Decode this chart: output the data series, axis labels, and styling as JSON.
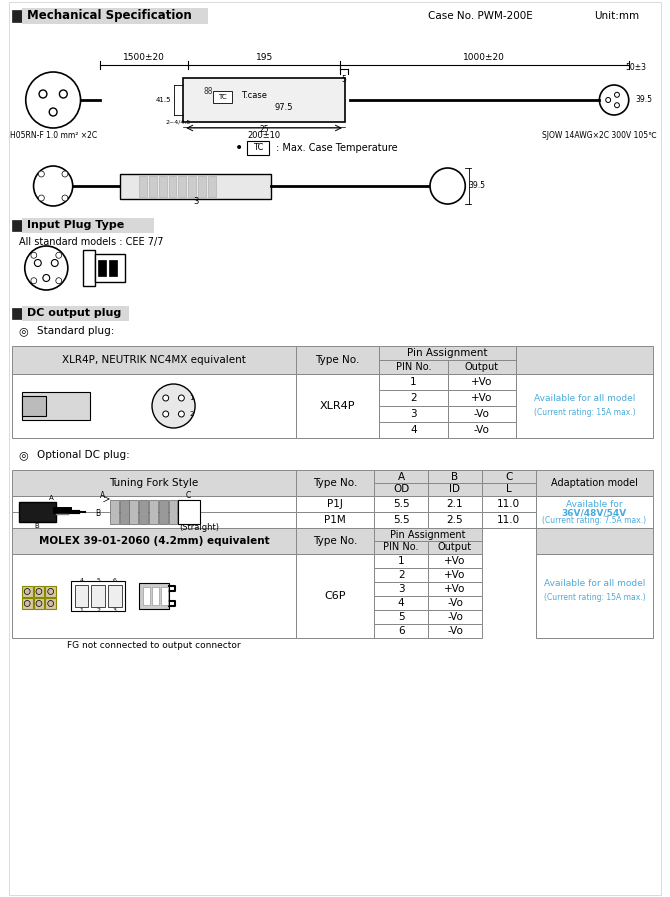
{
  "title_section": "Mechanical Specification",
  "case_no": "Case No. PWM-200E",
  "unit": "Unit:mm",
  "bg_color": "#ffffff",
  "header_bg": "#d0d0d0",
  "table_border": "#888888",
  "cyan_text": "#4AABDB",
  "section2_title": "Input Plug Type",
  "section2_sub": "All standard models : CEE 7/7",
  "section3_title": "DC output plug",
  "standard_plug_label": "Standard plug:",
  "optional_plug_label": "Optional DC plug:",
  "xlr_table": {
    "col1_header": "XLR4P, NEUTRIK NC4MX equivalent",
    "col2_header": "Type No.",
    "col3_header": "Pin Assignment",
    "col3a": "PIN No.",
    "col3b": "Output",
    "type_no": "XLR4P",
    "pins": [
      {
        "pin": "1",
        "output": "+Vo"
      },
      {
        "pin": "2",
        "output": "+Vo"
      },
      {
        "pin": "3",
        "output": "-Vo"
      },
      {
        "pin": "4",
        "output": "-Vo"
      }
    ],
    "note_line1": "Available for all model",
    "note_line2": "(Current rating: 15A max.)"
  },
  "optional_table": {
    "col1_header": "Tuning Fork Style",
    "col2_header": "Type No.",
    "col_adapt": "Adaptation model",
    "rows_fork": [
      {
        "type": "P1J",
        "A": "5.5",
        "B": "2.1",
        "C": "11.0"
      },
      {
        "type": "P1M",
        "A": "5.5",
        "B": "2.5",
        "C": "11.0"
      }
    ],
    "fork_note_line1": "Available for",
    "fork_note_line2": "36V/48V/54V",
    "fork_note_line3": "(Current rating: 7.5A max.)",
    "col1_header2": "MOLEX 39-01-2060 (4.2mm) equivalent",
    "col2_header2": "Type No.",
    "pin_assign_header": "Pin Assignment",
    "pin_no_header": "PIN No.",
    "output_header": "Output",
    "molex_type": "C6P",
    "molex_pins": [
      {
        "pin": "1",
        "output": "+Vo"
      },
      {
        "pin": "2",
        "output": "+Vo"
      },
      {
        "pin": "3",
        "output": "+Vo"
      },
      {
        "pin": "4",
        "output": "-Vo"
      },
      {
        "pin": "5",
        "output": "-Vo"
      },
      {
        "pin": "6",
        "output": "-Vo"
      }
    ],
    "molex_note_line1": "Available for all model",
    "molex_note_line2": "(Current rating: 15A max.)",
    "molex_image_label": "FG not connected to output connector"
  }
}
